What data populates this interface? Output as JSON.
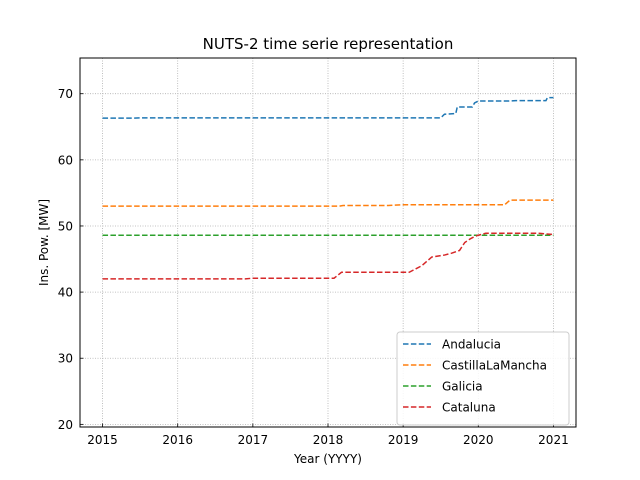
{
  "chart_data": {
    "type": "line",
    "title": "NUTS-2 time serie representation",
    "xlabel": "Year (YYYY)",
    "ylabel": "Ins. Pow. [MW]",
    "xlim": [
      2014.7,
      2021.3
    ],
    "ylim": [
      19.6,
      75.4
    ],
    "xticks": [
      2015,
      2016,
      2017,
      2018,
      2019,
      2020,
      2021
    ],
    "yticks": [
      20,
      30,
      40,
      50,
      60,
      70
    ],
    "grid": true,
    "grid_style": "dotted",
    "legend_position": "lower right",
    "series": [
      {
        "name": "Andalucia",
        "color": "#1f77b4",
        "style": "dashed",
        "x": [
          2015.0,
          2015.4,
          2015.5,
          2016.0,
          2017.0,
          2018.0,
          2019.0,
          2019.5,
          2019.55,
          2019.7,
          2019.72,
          2019.92,
          2019.95,
          2020.0,
          2020.4,
          2020.5,
          2020.8,
          2020.9,
          2020.92,
          2021.0
        ],
        "y": [
          66.3,
          66.3,
          66.35,
          66.35,
          66.35,
          66.35,
          66.35,
          66.35,
          66.9,
          67.0,
          68.0,
          68.0,
          68.6,
          68.9,
          68.9,
          68.95,
          68.95,
          68.95,
          69.4,
          69.4
        ]
      },
      {
        "name": "CastillaLaMancha",
        "color": "#ff7f0e",
        "style": "dashed",
        "x": [
          2015.0,
          2016.0,
          2017.0,
          2018.0,
          2018.15,
          2018.2,
          2018.8,
          2019.0,
          2019.5,
          2020.0,
          2020.35,
          2020.42,
          2020.5,
          2021.0
        ],
        "y": [
          53.0,
          53.0,
          53.0,
          53.0,
          53.0,
          53.1,
          53.1,
          53.2,
          53.2,
          53.2,
          53.2,
          53.9,
          53.9,
          53.9
        ]
      },
      {
        "name": "Galicia",
        "color": "#2ca02c",
        "style": "dashed",
        "x": [
          2015.0,
          2016.0,
          2017.0,
          2018.0,
          2019.0,
          2020.0,
          2021.0
        ],
        "y": [
          48.6,
          48.6,
          48.6,
          48.6,
          48.6,
          48.6,
          48.6
        ]
      },
      {
        "name": "Cataluna",
        "color": "#d62728",
        "style": "dashed",
        "x": [
          2015.0,
          2016.0,
          2016.9,
          2017.0,
          2018.0,
          2018.08,
          2018.18,
          2018.6,
          2019.0,
          2019.08,
          2019.25,
          2019.38,
          2019.55,
          2019.65,
          2019.75,
          2019.82,
          2019.9,
          2019.95,
          2020.0,
          2020.1,
          2020.5,
          2020.8,
          2020.9,
          2021.0
        ],
        "y": [
          42.0,
          42.0,
          42.0,
          42.1,
          42.1,
          42.1,
          43.0,
          43.0,
          43.0,
          43.0,
          44.0,
          45.3,
          45.6,
          45.9,
          46.3,
          47.5,
          48.1,
          48.4,
          48.6,
          48.9,
          48.9,
          48.9,
          48.8,
          48.7
        ]
      }
    ]
  }
}
